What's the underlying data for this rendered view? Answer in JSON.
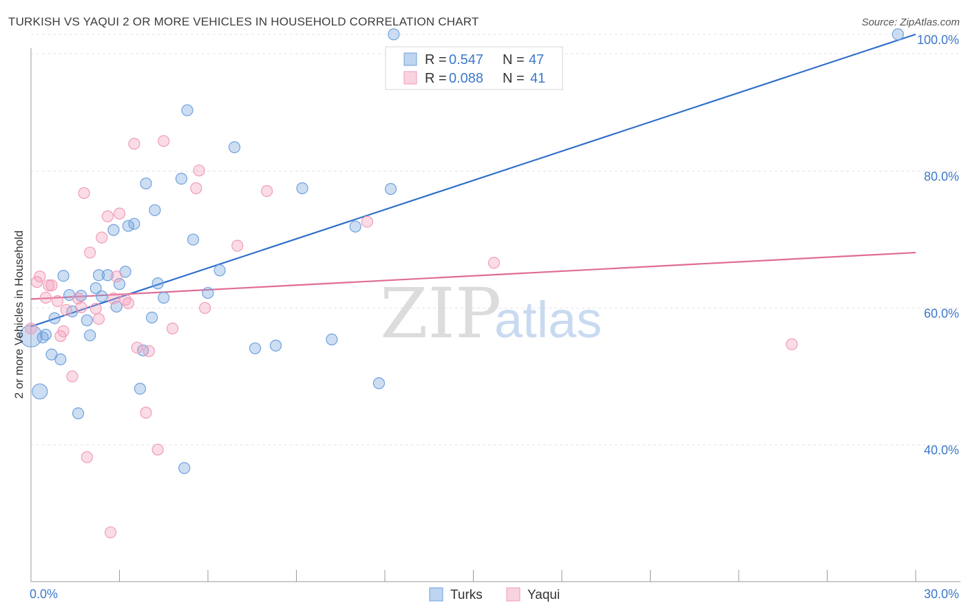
{
  "title": "TURKISH VS YAQUI 2 OR MORE VEHICLES IN HOUSEHOLD CORRELATION CHART",
  "source": "Source: ZipAtlas.com",
  "watermark": {
    "zip": "ZIP",
    "atlas": "atlas"
  },
  "chart_data": {
    "type": "scatter",
    "title": "TURKISH VS YAQUI 2 OR MORE VEHICLES IN HOUSEHOLD CORRELATION CHART",
    "xlabel": "",
    "ylabel": "2 or more Vehicles in Household",
    "xlim": [
      0,
      30
    ],
    "ylim": [
      20,
      102
    ],
    "x_tick_labels": [
      "0.0%",
      "30.0%"
    ],
    "y_ticks": [
      40,
      60,
      80,
      100
    ],
    "y_tick_labels": [
      "40.0%",
      "60.0%",
      "80.0%",
      "100.0%"
    ],
    "grid": true,
    "legend_placement": "top-center",
    "series": [
      {
        "name": "Turks",
        "color": "#6fa0dd",
        "line_color": "#2f6fca",
        "r_label": "R =",
        "r": "0.547",
        "n_label": "N =",
        "n": "47",
        "trend": {
          "x": [
            0,
            30
          ],
          "y": [
            57.3,
            100
          ]
        },
        "points": [
          [
            0.0,
            55.9,
            16
          ],
          [
            0.3,
            47.8,
            11
          ],
          [
            0.4,
            55.7,
            8
          ],
          [
            0.5,
            56.1,
            8
          ],
          [
            0.7,
            53.2,
            8
          ],
          [
            0.8,
            58.5,
            8
          ],
          [
            1.0,
            52.5,
            8
          ],
          [
            1.1,
            64.7,
            8
          ],
          [
            1.3,
            61.9,
            8
          ],
          [
            1.4,
            59.5,
            8
          ],
          [
            1.6,
            44.6,
            8
          ],
          [
            1.7,
            61.8,
            8
          ],
          [
            1.9,
            58.2,
            8
          ],
          [
            2.0,
            56.0,
            8
          ],
          [
            2.2,
            62.9,
            8
          ],
          [
            2.3,
            64.8,
            8
          ],
          [
            2.4,
            61.7,
            8
          ],
          [
            2.6,
            64.8,
            8
          ],
          [
            2.8,
            71.4,
            8
          ],
          [
            2.9,
            60.2,
            8
          ],
          [
            3.0,
            63.5,
            8
          ],
          [
            3.2,
            65.3,
            8
          ],
          [
            3.3,
            72.0,
            8
          ],
          [
            3.5,
            72.3,
            8
          ],
          [
            3.7,
            48.2,
            8
          ],
          [
            3.8,
            53.8,
            8
          ],
          [
            3.9,
            78.2,
            8
          ],
          [
            4.1,
            58.6,
            8
          ],
          [
            4.2,
            74.3,
            8
          ],
          [
            4.3,
            63.6,
            8
          ],
          [
            4.5,
            61.5,
            8
          ],
          [
            5.1,
            78.9,
            8
          ],
          [
            5.2,
            36.6,
            8
          ],
          [
            5.3,
            88.9,
            8
          ],
          [
            5.5,
            70.0,
            8
          ],
          [
            6.0,
            62.2,
            8
          ],
          [
            6.4,
            65.5,
            8
          ],
          [
            6.9,
            83.5,
            8
          ],
          [
            7.6,
            54.1,
            8
          ],
          [
            8.3,
            54.5,
            8
          ],
          [
            9.2,
            77.5,
            8
          ],
          [
            10.2,
            55.4,
            8
          ],
          [
            11.0,
            71.9,
            8
          ],
          [
            11.8,
            49.0,
            8
          ],
          [
            12.2,
            77.4,
            8
          ],
          [
            12.3,
            100.0,
            8
          ],
          [
            29.4,
            100.0,
            8
          ]
        ]
      },
      {
        "name": "Yaqui",
        "color": "#f19bb8",
        "line_color": "#e06b93",
        "r_label": "R =",
        "r": "0.088",
        "n_label": "N =",
        "n": "41",
        "trend": {
          "x": [
            0,
            30
          ],
          "y": [
            61.3,
            68.1
          ]
        },
        "points": [
          [
            0.0,
            57.0,
            8
          ],
          [
            0.2,
            63.8,
            8
          ],
          [
            0.3,
            64.6,
            8
          ],
          [
            0.5,
            61.5,
            8
          ],
          [
            0.6,
            63.3,
            8
          ],
          [
            0.7,
            63.3,
            8
          ],
          [
            0.9,
            61.0,
            8
          ],
          [
            1.0,
            55.9,
            8
          ],
          [
            1.1,
            56.6,
            8
          ],
          [
            1.2,
            59.7,
            8
          ],
          [
            1.4,
            50.0,
            8
          ],
          [
            1.6,
            61.4,
            8
          ],
          [
            1.7,
            60.1,
            8
          ],
          [
            1.8,
            76.8,
            8
          ],
          [
            1.9,
            38.2,
            8
          ],
          [
            2.0,
            68.1,
            8
          ],
          [
            2.2,
            59.9,
            8
          ],
          [
            2.3,
            58.4,
            8
          ],
          [
            2.4,
            70.3,
            8
          ],
          [
            2.6,
            73.4,
            8
          ],
          [
            2.7,
            27.2,
            8
          ],
          [
            2.8,
            61.4,
            8
          ],
          [
            2.9,
            64.6,
            8
          ],
          [
            3.0,
            73.8,
            8
          ],
          [
            3.2,
            61.2,
            8
          ],
          [
            3.3,
            60.7,
            8
          ],
          [
            3.5,
            84.0,
            8
          ],
          [
            3.6,
            54.2,
            8
          ],
          [
            3.9,
            44.7,
            8
          ],
          [
            4.0,
            53.7,
            8
          ],
          [
            4.3,
            39.3,
            8
          ],
          [
            4.5,
            84.4,
            8
          ],
          [
            4.8,
            57.0,
            8
          ],
          [
            5.6,
            77.5,
            8
          ],
          [
            5.7,
            80.1,
            8
          ],
          [
            5.9,
            60.0,
            8
          ],
          [
            7.0,
            69.1,
            8
          ],
          [
            8.0,
            77.1,
            8
          ],
          [
            11.4,
            72.6,
            8
          ],
          [
            15.7,
            66.6,
            8
          ],
          [
            25.8,
            54.7,
            8
          ]
        ]
      }
    ]
  }
}
